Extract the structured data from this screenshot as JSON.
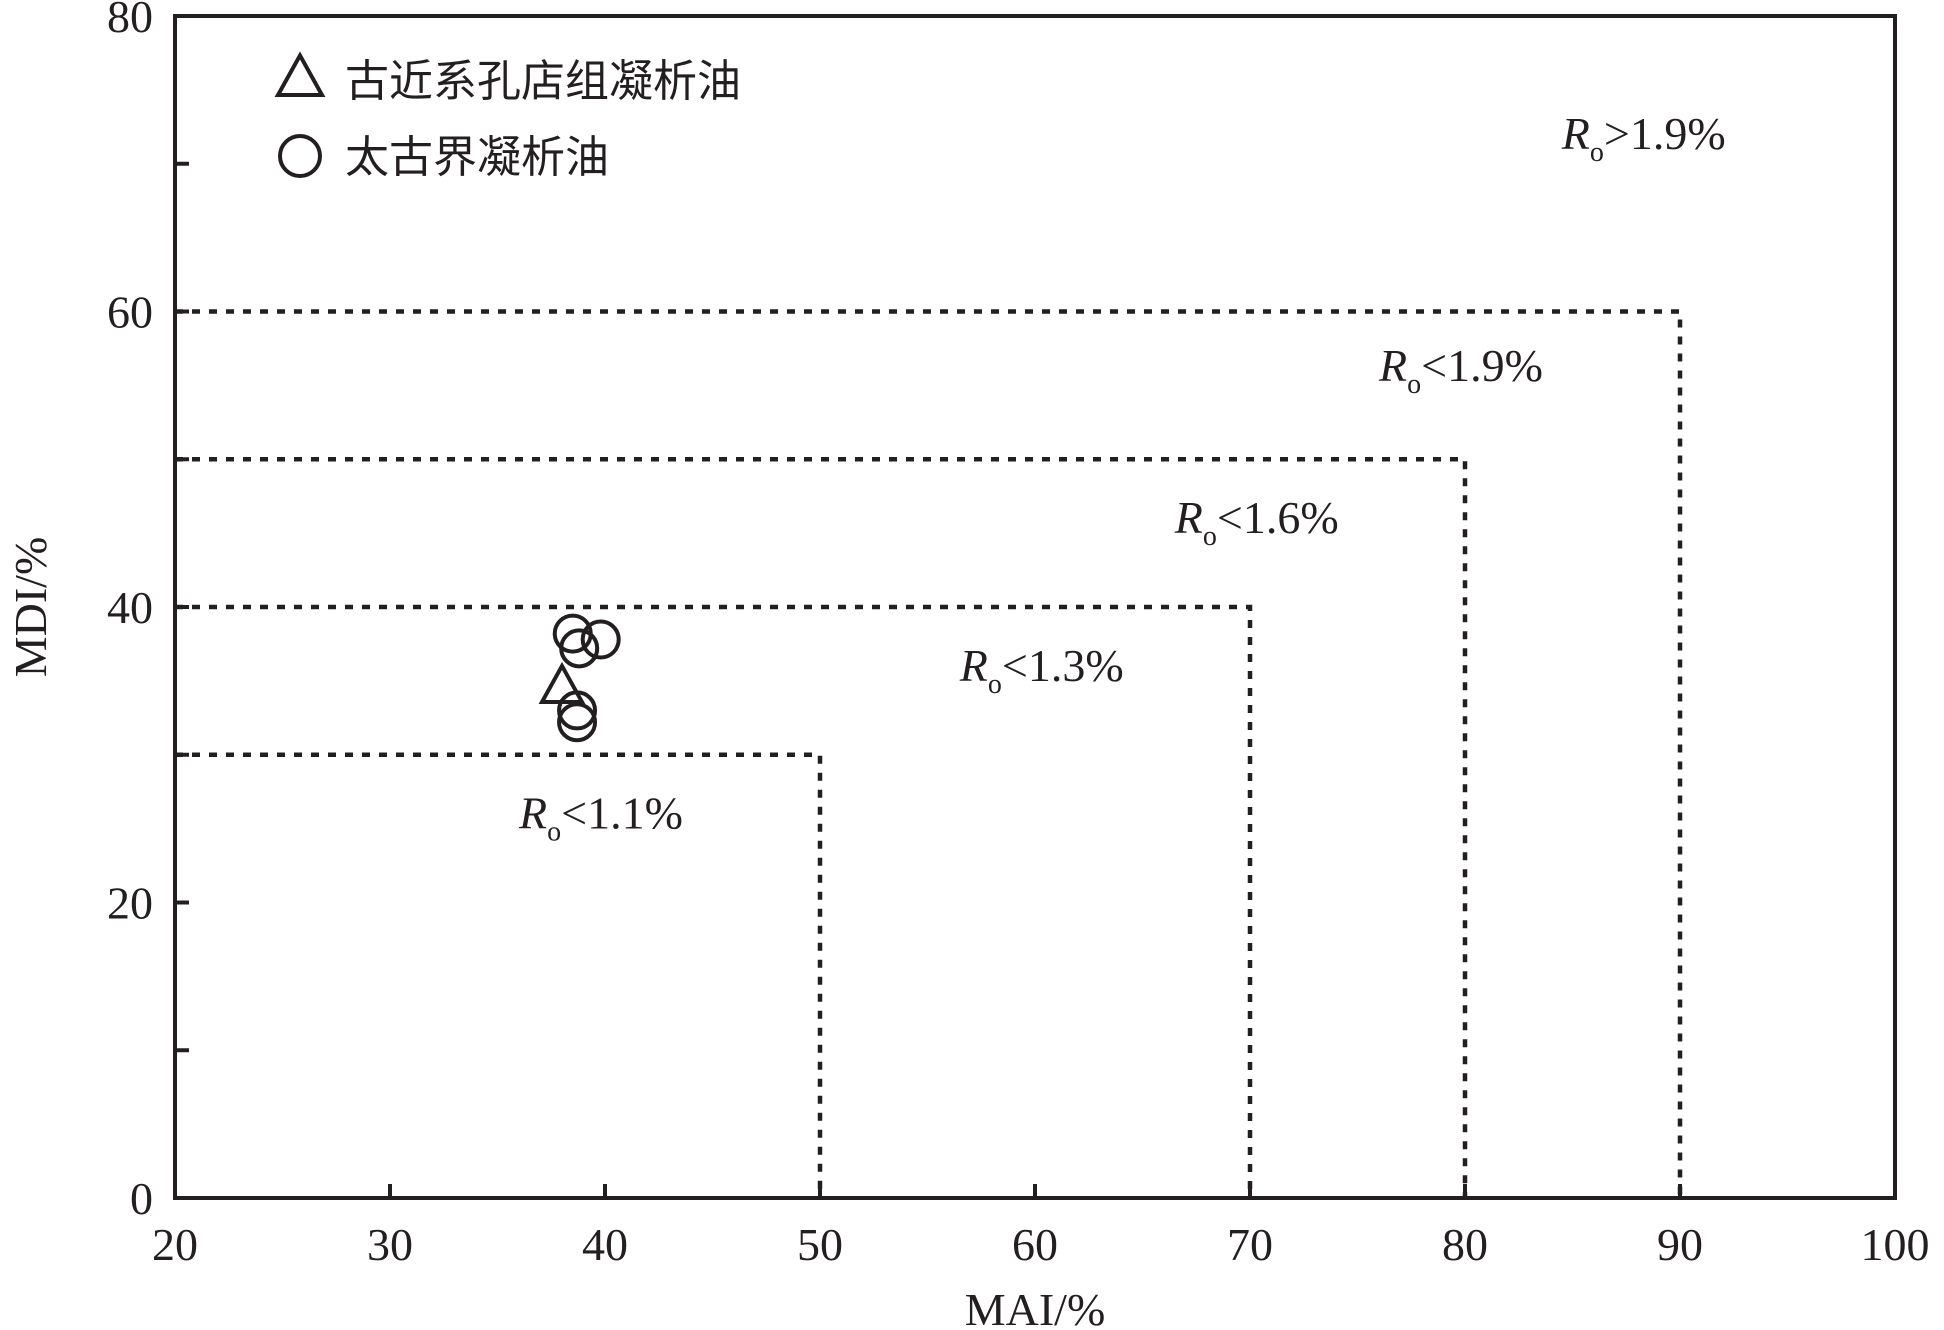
{
  "chart_data": {
    "type": "scatter",
    "xlabel": "MAI/%",
    "ylabel": "MDI/%",
    "xlim": [
      20,
      100
    ],
    "ylim": [
      0,
      80
    ],
    "x_ticks": [
      "20",
      "30",
      "40",
      "50",
      "60",
      "70",
      "80",
      "90",
      "100"
    ],
    "y_ticks": [
      "0",
      "20",
      "40",
      "60",
      "80"
    ],
    "grid": false,
    "legend_position": "top-left",
    "series": [
      {
        "name": "古近系孔店组凝析油",
        "marker": "triangle",
        "points": [
          {
            "x": 38.0,
            "y": 34.5
          }
        ]
      },
      {
        "name": "太古界凝析油",
        "marker": "circle",
        "points": [
          {
            "x": 38.5,
            "y": 38.2
          },
          {
            "x": 38.8,
            "y": 37.2
          },
          {
            "x": 39.8,
            "y": 37.8
          },
          {
            "x": 38.7,
            "y": 33.0
          },
          {
            "x": 38.7,
            "y": 32.2
          }
        ]
      }
    ],
    "zones": [
      {
        "label": "1.1%",
        "op": "<",
        "x_max": 50,
        "y_max": 30,
        "label_at": {
          "x": 36,
          "y": 25
        }
      },
      {
        "label": "1.3%",
        "op": "<",
        "x_max": 70,
        "y_max": 40,
        "label_at": {
          "x": 56.5,
          "y": 35
        }
      },
      {
        "label": "1.6%",
        "op": "<",
        "x_max": 80,
        "y_max": 50,
        "label_at": {
          "x": 66.5,
          "y": 45
        }
      },
      {
        "label": "1.9%",
        "op": "<",
        "x_max": 90,
        "y_max": 60,
        "label_at": {
          "x": 76,
          "y": 55.3
        }
      },
      {
        "label": "1.9%",
        "op": ">",
        "x_max": null,
        "y_max": null,
        "label_at": {
          "x": 84.5,
          "y": 71
        }
      }
    ],
    "zone_symbol": "R",
    "zone_subscript": "o"
  }
}
